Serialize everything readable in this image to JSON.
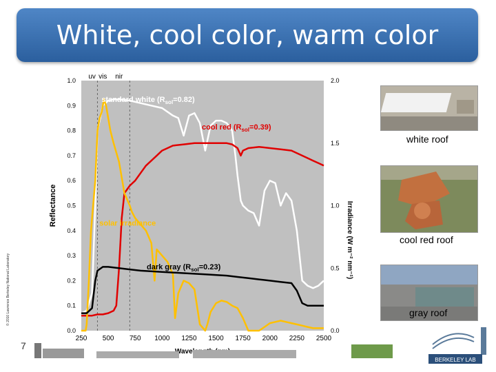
{
  "slide": {
    "title": "White, cool color, warm color",
    "page_number": "7",
    "copyright": "© 2010 Lawrence Berkeley National Laboratory"
  },
  "photos": [
    {
      "label": "white roof"
    },
    {
      "label": "cool red roof"
    },
    {
      "label": "gray roof"
    }
  ],
  "logo": {
    "text": "BERKELEY LAB"
  },
  "chart_data": {
    "type": "line",
    "xlabel": "Wavelength (nm)",
    "ylabel": "Reflectance",
    "y2label": "Irradiance (W m⁻² nm⁻¹)",
    "xlim": [
      250,
      2500
    ],
    "ylim": [
      0,
      1.0
    ],
    "y2lim": [
      0,
      2.0
    ],
    "xticks": [
      250,
      500,
      750,
      1000,
      1250,
      1500,
      1750,
      2000,
      2250,
      2500
    ],
    "yticks": [
      0.0,
      0.1,
      0.2,
      0.3,
      0.4,
      0.5,
      0.6,
      0.7,
      0.8,
      0.9,
      1.0
    ],
    "y2ticks": [
      0.0,
      0.5,
      1.0,
      1.5,
      2.0
    ],
    "band_labels": [
      {
        "text": "uv",
        "x": 350
      },
      {
        "text": "vis",
        "x": 450
      },
      {
        "text": "nir",
        "x": 600
      }
    ],
    "band_lines": [
      400,
      700
    ],
    "background": "#c0c0c0",
    "series": [
      {
        "name": "standard white (R",
        "name_sub": "sol",
        "name_end": "=0.82)",
        "color": "#ffffff",
        "axis": "left",
        "label_x": 870,
        "label_y": 0.915,
        "x": [
          250,
          300,
          350,
          380,
          400,
          450,
          500,
          550,
          600,
          700,
          800,
          900,
          1000,
          1100,
          1150,
          1200,
          1250,
          1300,
          1350,
          1400,
          1450,
          1500,
          1550,
          1600,
          1650,
          1680,
          1700,
          1730,
          1750,
          1800,
          1850,
          1900,
          1950,
          2000,
          2050,
          2100,
          2150,
          2200,
          2250,
          2300,
          2350,
          2400,
          2450,
          2500
        ],
        "y": [
          0.07,
          0.08,
          0.15,
          0.5,
          0.8,
          0.9,
          0.92,
          0.925,
          0.925,
          0.92,
          0.91,
          0.9,
          0.89,
          0.86,
          0.85,
          0.78,
          0.86,
          0.87,
          0.83,
          0.72,
          0.82,
          0.84,
          0.84,
          0.83,
          0.8,
          0.7,
          0.62,
          0.52,
          0.5,
          0.48,
          0.47,
          0.42,
          0.56,
          0.6,
          0.59,
          0.5,
          0.55,
          0.52,
          0.4,
          0.2,
          0.18,
          0.17,
          0.18,
          0.2
        ]
      },
      {
        "name": "cool red (R",
        "name_sub": "sol",
        "name_end": "=0.39)",
        "color": "#e00000",
        "axis": "left",
        "label_x": 1690,
        "label_y": 0.805,
        "x": [
          250,
          350,
          400,
          450,
          500,
          550,
          575,
          600,
          625,
          650,
          700,
          750,
          800,
          850,
          900,
          950,
          1000,
          1100,
          1200,
          1300,
          1400,
          1500,
          1600,
          1650,
          1700,
          1730,
          1750,
          1800,
          1900,
          2000,
          2100,
          2200,
          2300,
          2350,
          2400,
          2450,
          2500
        ],
        "y": [
          0.06,
          0.06,
          0.065,
          0.065,
          0.07,
          0.08,
          0.1,
          0.25,
          0.45,
          0.55,
          0.58,
          0.6,
          0.63,
          0.66,
          0.68,
          0.7,
          0.72,
          0.74,
          0.745,
          0.75,
          0.75,
          0.75,
          0.75,
          0.745,
          0.73,
          0.7,
          0.72,
          0.73,
          0.735,
          0.73,
          0.725,
          0.72,
          0.7,
          0.69,
          0.68,
          0.67,
          0.66
        ]
      },
      {
        "name": "solar irradiance",
        "color": "#ffc000",
        "axis": "right",
        "label_x": 680,
        "label_y": 0.42,
        "x": [
          250,
          290,
          300,
          320,
          340,
          360,
          380,
          400,
          420,
          440,
          460,
          480,
          500,
          520,
          550,
          600,
          650,
          700,
          720,
          750,
          800,
          850,
          900,
          930,
          950,
          1000,
          1050,
          1100,
          1120,
          1150,
          1200,
          1250,
          1300,
          1350,
          1400,
          1420,
          1450,
          1500,
          1550,
          1600,
          1650,
          1700,
          1750,
          1800,
          1850,
          1900,
          1950,
          2000,
          2050,
          2100,
          2150,
          2200,
          2250,
          2300,
          2350,
          2400,
          2450,
          2500
        ],
        "y": [
          0.0,
          0.0,
          0.05,
          0.4,
          0.8,
          1.0,
          1.2,
          1.6,
          1.7,
          1.75,
          1.85,
          1.8,
          1.7,
          1.6,
          1.5,
          1.35,
          1.1,
          1.0,
          0.95,
          0.9,
          0.85,
          0.8,
          0.7,
          0.4,
          0.65,
          0.6,
          0.55,
          0.45,
          0.1,
          0.3,
          0.4,
          0.38,
          0.33,
          0.05,
          0.0,
          0.05,
          0.15,
          0.22,
          0.24,
          0.23,
          0.2,
          0.18,
          0.1,
          0.0,
          0.0,
          0.0,
          0.03,
          0.06,
          0.07,
          0.08,
          0.07,
          0.06,
          0.05,
          0.04,
          0.03,
          0.02,
          0.02,
          0.02
        ]
      },
      {
        "name": "dark gray (R",
        "name_sub": "sol",
        "name_end": "=0.23)",
        "color": "#000000",
        "axis": "left",
        "label_x": 1200,
        "label_y": 0.245,
        "x": [
          250,
          300,
          350,
          380,
          400,
          450,
          500,
          600,
          700,
          800,
          1000,
          1200,
          1400,
          1600,
          1700,
          1800,
          1900,
          2000,
          2100,
          2200,
          2250,
          2300,
          2350,
          2400,
          2450,
          2500
        ],
        "y": [
          0.07,
          0.07,
          0.09,
          0.2,
          0.24,
          0.255,
          0.255,
          0.25,
          0.245,
          0.24,
          0.235,
          0.23,
          0.225,
          0.22,
          0.215,
          0.21,
          0.205,
          0.2,
          0.195,
          0.19,
          0.16,
          0.11,
          0.1,
          0.1,
          0.1,
          0.1
        ]
      }
    ]
  }
}
